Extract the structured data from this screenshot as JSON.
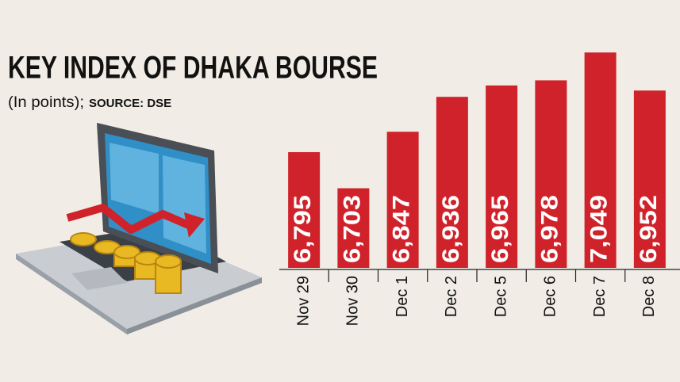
{
  "chart_data": {
    "type": "bar",
    "title": "KEY INDEX OF DHAKA BOURSE",
    "subtitle": "(In points);",
    "source": "SOURCE: DSE",
    "categories": [
      "Nov 29",
      "Nov 30",
      "Dec 1",
      "Dec 2",
      "Dec 5",
      "Dec 6",
      "Dec 7",
      "Dec 8"
    ],
    "values": [
      6795,
      6703,
      6847,
      6936,
      6965,
      6978,
      7049,
      6952
    ],
    "value_labels": [
      "6,795",
      "6,703",
      "6,847",
      "6,936",
      "6,965",
      "6,978",
      "7,049",
      "6,952"
    ],
    "color": "#d0222a",
    "ylim": [
      6500,
      7100
    ]
  }
}
